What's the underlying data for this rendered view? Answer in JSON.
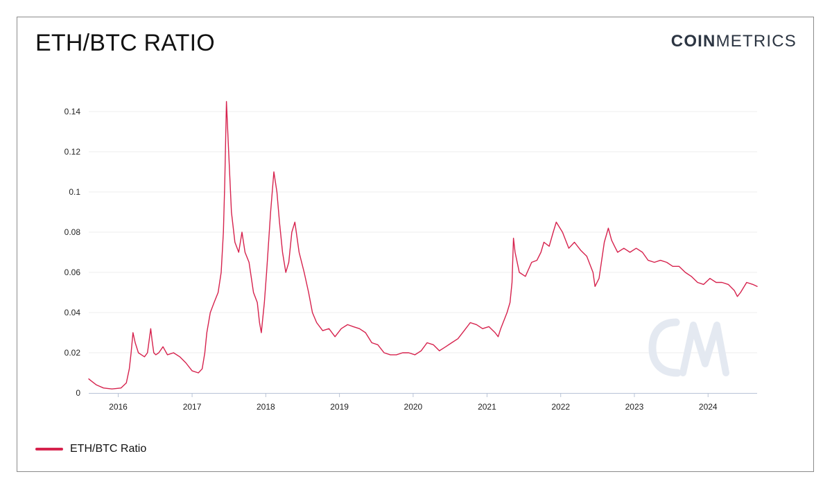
{
  "header": {
    "title": "ETH/BTC RATIO",
    "brand_bold": "COIN",
    "brand_light": "METRICS"
  },
  "legend": {
    "label": "ETH/BTC Ratio"
  },
  "colors": {
    "series": "#d6224d",
    "grid": "#ececec",
    "watermark": "#e4e9f1"
  },
  "chart_data": {
    "type": "line",
    "title": "ETH/BTC RATIO",
    "xlabel": "",
    "ylabel": "",
    "xlim": [
      "2015-08-08",
      "2024-08-31"
    ],
    "ylim": [
      0,
      0.14
    ],
    "y_ticks": [
      0,
      0.02,
      0.04,
      0.06,
      0.08,
      0.1,
      0.12,
      0.14
    ],
    "y_tick_labels": [
      "0",
      "0.02",
      "0.04",
      "0.06",
      "0.08",
      "0.1",
      "0.12",
      "0.14"
    ],
    "x_ticks": [
      "2016-01-01",
      "2017-01-01",
      "2018-01-01",
      "2019-01-01",
      "2020-01-01",
      "2021-01-01",
      "2022-01-01",
      "2023-01-01",
      "2024-01-01"
    ],
    "x_tick_labels": [
      "2016",
      "2017",
      "2018",
      "2019",
      "2020",
      "2021",
      "2022",
      "2023",
      "2024"
    ],
    "grid": true,
    "legend_position": "bottom-left",
    "series": [
      {
        "name": "ETH/BTC Ratio",
        "x": [
          "2015-08-08",
          "2015-08-20",
          "2015-09-15",
          "2015-10-20",
          "2015-12-01",
          "2016-01-15",
          "2016-02-10",
          "2016-02-25",
          "2016-03-05",
          "2016-03-14",
          "2016-03-25",
          "2016-04-10",
          "2016-04-25",
          "2016-05-10",
          "2016-05-25",
          "2016-06-10",
          "2016-06-17",
          "2016-06-25",
          "2016-07-05",
          "2016-07-20",
          "2016-08-10",
          "2016-09-01",
          "2016-10-01",
          "2016-11-01",
          "2016-12-01",
          "2017-01-01",
          "2017-02-01",
          "2017-02-20",
          "2017-03-05",
          "2017-03-15",
          "2017-04-01",
          "2017-04-20",
          "2017-05-10",
          "2017-05-25",
          "2017-06-05",
          "2017-06-12",
          "2017-06-20",
          "2017-07-01",
          "2017-07-15",
          "2017-08-01",
          "2017-08-20",
          "2017-09-05",
          "2017-09-20",
          "2017-10-10",
          "2017-11-01",
          "2017-11-20",
          "2017-12-01",
          "2017-12-10",
          "2017-12-25",
          "2018-01-05",
          "2018-01-15",
          "2018-01-25",
          "2018-02-10",
          "2018-02-25",
          "2018-03-10",
          "2018-03-25",
          "2018-04-10",
          "2018-04-25",
          "2018-05-10",
          "2018-05-25",
          "2018-06-15",
          "2018-07-10",
          "2018-08-01",
          "2018-08-20",
          "2018-09-10",
          "2018-10-10",
          "2018-11-10",
          "2018-12-10",
          "2019-01-10",
          "2019-02-10",
          "2019-03-10",
          "2019-04-10",
          "2019-05-10",
          "2019-06-10",
          "2019-07-10",
          "2019-08-10",
          "2019-09-10",
          "2019-10-10",
          "2019-11-10",
          "2019-12-10",
          "2020-01-10",
          "2020-02-10",
          "2020-03-10",
          "2020-04-10",
          "2020-05-10",
          "2020-06-10",
          "2020-07-10",
          "2020-08-10",
          "2020-09-10",
          "2020-10-10",
          "2020-11-10",
          "2020-12-10",
          "2021-01-10",
          "2021-02-10",
          "2021-02-25",
          "2021-03-10",
          "2021-04-10",
          "2021-04-25",
          "2021-05-05",
          "2021-05-12",
          "2021-05-20",
          "2021-06-10",
          "2021-07-10",
          "2021-08-10",
          "2021-09-05",
          "2021-09-25",
          "2021-10-10",
          "2021-11-05",
          "2021-11-25",
          "2021-12-10",
          "2022-01-10",
          "2022-02-10",
          "2022-03-10",
          "2022-04-10",
          "2022-05-10",
          "2022-06-10",
          "2022-06-20",
          "2022-07-10",
          "2022-08-05",
          "2022-08-25",
          "2022-09-10",
          "2022-09-25",
          "2022-10-10",
          "2022-11-10",
          "2022-12-10",
          "2023-01-10",
          "2023-02-10",
          "2023-03-10",
          "2023-04-10",
          "2023-05-10",
          "2023-06-10",
          "2023-07-10",
          "2023-08-10",
          "2023-09-10",
          "2023-10-10",
          "2023-11-10",
          "2023-12-10",
          "2024-01-10",
          "2024-02-10",
          "2024-03-10",
          "2024-04-10",
          "2024-05-10",
          "2024-05-25",
          "2024-06-10",
          "2024-07-10",
          "2024-08-10",
          "2024-08-31"
        ],
        "y": [
          0.007,
          0.006,
          0.004,
          0.0025,
          0.002,
          0.0025,
          0.005,
          0.012,
          0.02,
          0.03,
          0.025,
          0.02,
          0.019,
          0.018,
          0.02,
          0.032,
          0.026,
          0.02,
          0.019,
          0.02,
          0.023,
          0.019,
          0.02,
          0.018,
          0.015,
          0.011,
          0.01,
          0.012,
          0.02,
          0.03,
          0.04,
          0.045,
          0.05,
          0.06,
          0.08,
          0.105,
          0.145,
          0.12,
          0.09,
          0.075,
          0.07,
          0.08,
          0.07,
          0.065,
          0.05,
          0.045,
          0.035,
          0.03,
          0.045,
          0.06,
          0.075,
          0.09,
          0.11,
          0.1,
          0.085,
          0.07,
          0.06,
          0.065,
          0.08,
          0.085,
          0.07,
          0.06,
          0.05,
          0.04,
          0.035,
          0.031,
          0.032,
          0.028,
          0.032,
          0.034,
          0.033,
          0.032,
          0.03,
          0.025,
          0.024,
          0.02,
          0.019,
          0.019,
          0.02,
          0.02,
          0.019,
          0.021,
          0.025,
          0.024,
          0.021,
          0.023,
          0.025,
          0.027,
          0.031,
          0.035,
          0.034,
          0.032,
          0.033,
          0.03,
          0.028,
          0.032,
          0.04,
          0.045,
          0.055,
          0.077,
          0.07,
          0.06,
          0.058,
          0.065,
          0.066,
          0.07,
          0.075,
          0.073,
          0.08,
          0.085,
          0.08,
          0.072,
          0.075,
          0.071,
          0.068,
          0.06,
          0.053,
          0.057,
          0.075,
          0.082,
          0.076,
          0.073,
          0.07,
          0.072,
          0.07,
          0.072,
          0.07,
          0.066,
          0.065,
          0.066,
          0.065,
          0.063,
          0.063,
          0.06,
          0.058,
          0.055,
          0.054,
          0.057,
          0.055,
          0.055,
          0.054,
          0.051,
          0.048,
          0.05,
          0.055,
          0.054,
          0.053
        ]
      }
    ]
  }
}
